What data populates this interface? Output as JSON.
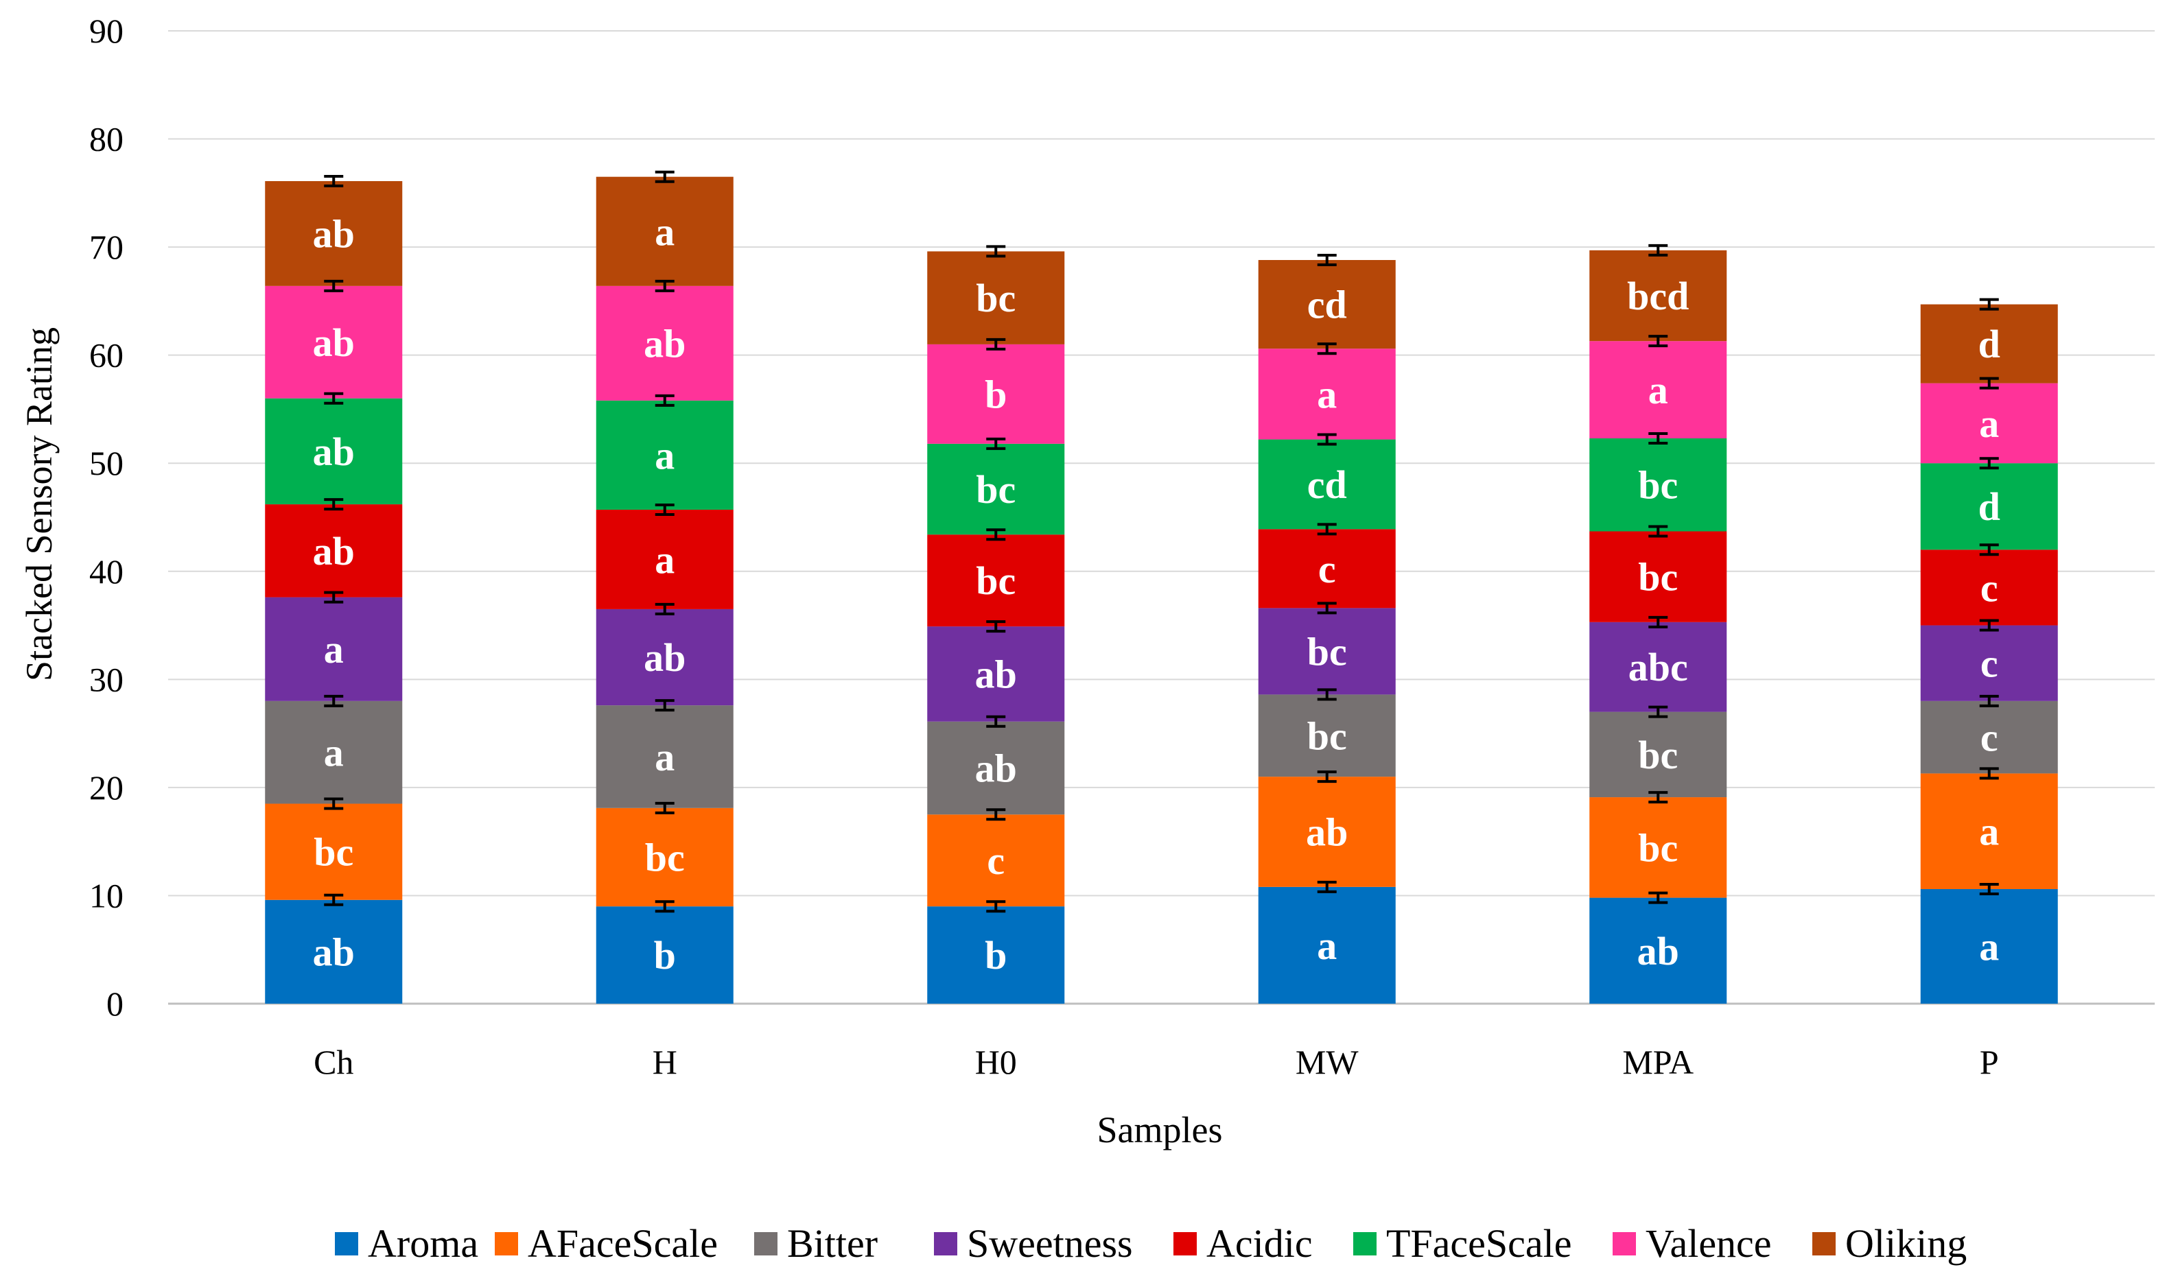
{
  "chart_data": {
    "type": "bar",
    "stacked": true,
    "title": "",
    "xlabel": "Samples",
    "ylabel": "Stacked Sensory Rating",
    "ylim": [
      0,
      90
    ],
    "yticks": [
      0,
      10,
      20,
      30,
      40,
      50,
      60,
      70,
      80,
      90
    ],
    "grid": true,
    "legend_position": "bottom",
    "categories": [
      "Ch",
      "H",
      "H0",
      "MW",
      "MPA",
      "P"
    ],
    "series": [
      {
        "name": "Aroma",
        "color": "#0070C0",
        "values": [
          9.6,
          9.0,
          9.0,
          10.8,
          9.8,
          10.6
        ],
        "labels": [
          "ab",
          "b",
          "b",
          "a",
          "ab",
          "a"
        ]
      },
      {
        "name": "AFaceScale",
        "color": "#FF6600",
        "values": [
          8.9,
          9.1,
          8.5,
          10.2,
          9.3,
          10.7
        ],
        "labels": [
          "bc",
          "bc",
          "c",
          "ab",
          "bc",
          "a"
        ]
      },
      {
        "name": "Bitter",
        "color": "#767171",
        "values": [
          9.5,
          9.5,
          8.6,
          7.6,
          7.9,
          6.7
        ],
        "labels": [
          "a",
          "a",
          "ab",
          "bc",
          "bc",
          "c"
        ]
      },
      {
        "name": "Sweetness",
        "color": "#7030A0",
        "values": [
          9.6,
          8.9,
          8.8,
          8.0,
          8.3,
          7.0
        ],
        "labels": [
          "a",
          "ab",
          "ab",
          "bc",
          "abc",
          "c"
        ]
      },
      {
        "name": "Acidic",
        "color": "#E00000",
        "values": [
          8.6,
          9.2,
          8.5,
          7.3,
          8.4,
          7.0
        ],
        "labels": [
          "ab",
          "a",
          "bc",
          "c",
          "bc",
          "c"
        ]
      },
      {
        "name": "TFaceScale",
        "color": "#00B050",
        "values": [
          9.8,
          10.1,
          8.4,
          8.3,
          8.6,
          8.0
        ],
        "labels": [
          "ab",
          "a",
          "bc",
          "cd",
          "bc",
          "d"
        ]
      },
      {
        "name": "Valence",
        "color": "#FF3399",
        "values": [
          10.4,
          10.6,
          9.2,
          8.4,
          9.0,
          7.4
        ],
        "labels": [
          "ab",
          "ab",
          "b",
          "a",
          "a",
          "a"
        ]
      },
      {
        "name": "Oliking",
        "color": "#B54708",
        "values": [
          9.7,
          10.1,
          8.6,
          8.2,
          8.4,
          7.3
        ],
        "labels": [
          "ab",
          "a",
          "bc",
          "cd",
          "bcd",
          "d"
        ]
      }
    ]
  }
}
